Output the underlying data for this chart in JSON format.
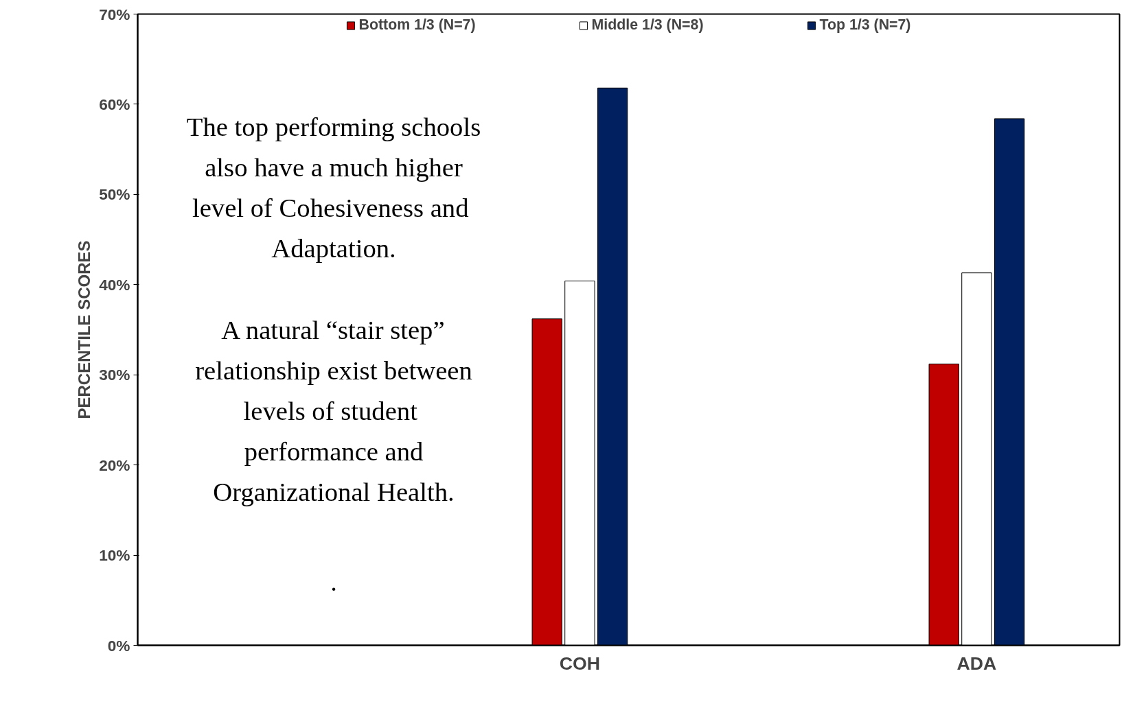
{
  "chart_data": {
    "type": "bar",
    "categories": [
      "COH",
      "ADA"
    ],
    "series": [
      {
        "name": "Bottom 1/3 (N=7)",
        "color": "#c00000",
        "values": [
          36.2,
          31.2
        ]
      },
      {
        "name": "Middle 1/3 (N=8)",
        "color": "#ffffff",
        "values": [
          40.4,
          41.3
        ]
      },
      {
        "name": "Top 1/3 (N=7)",
        "color": "#002060",
        "values": [
          61.8,
          58.4
        ]
      }
    ],
    "ylabel": "PERCENTILE SCORES",
    "ylim": [
      0,
      70
    ],
    "yticks": [
      {
        "value": 0,
        "label": "0%"
      },
      {
        "value": 10,
        "label": "10%"
      },
      {
        "value": 20,
        "label": "20%"
      },
      {
        "value": 30,
        "label": "30%"
      },
      {
        "value": 40,
        "label": "40%"
      },
      {
        "value": 50,
        "label": "50%"
      },
      {
        "value": 60,
        "label": "60%"
      },
      {
        "value": 70,
        "label": "70%"
      }
    ],
    "annotations": [
      "The top performing schools\nalso have a much higher\nlevel of  Cohesiveness and\nAdaptation.\n\nA natural “stair step”\nrelationship exist between\nlevels of  student\nperformance and\nOrganizational Health.",
      "."
    ],
    "legend": "top",
    "grid": false
  }
}
